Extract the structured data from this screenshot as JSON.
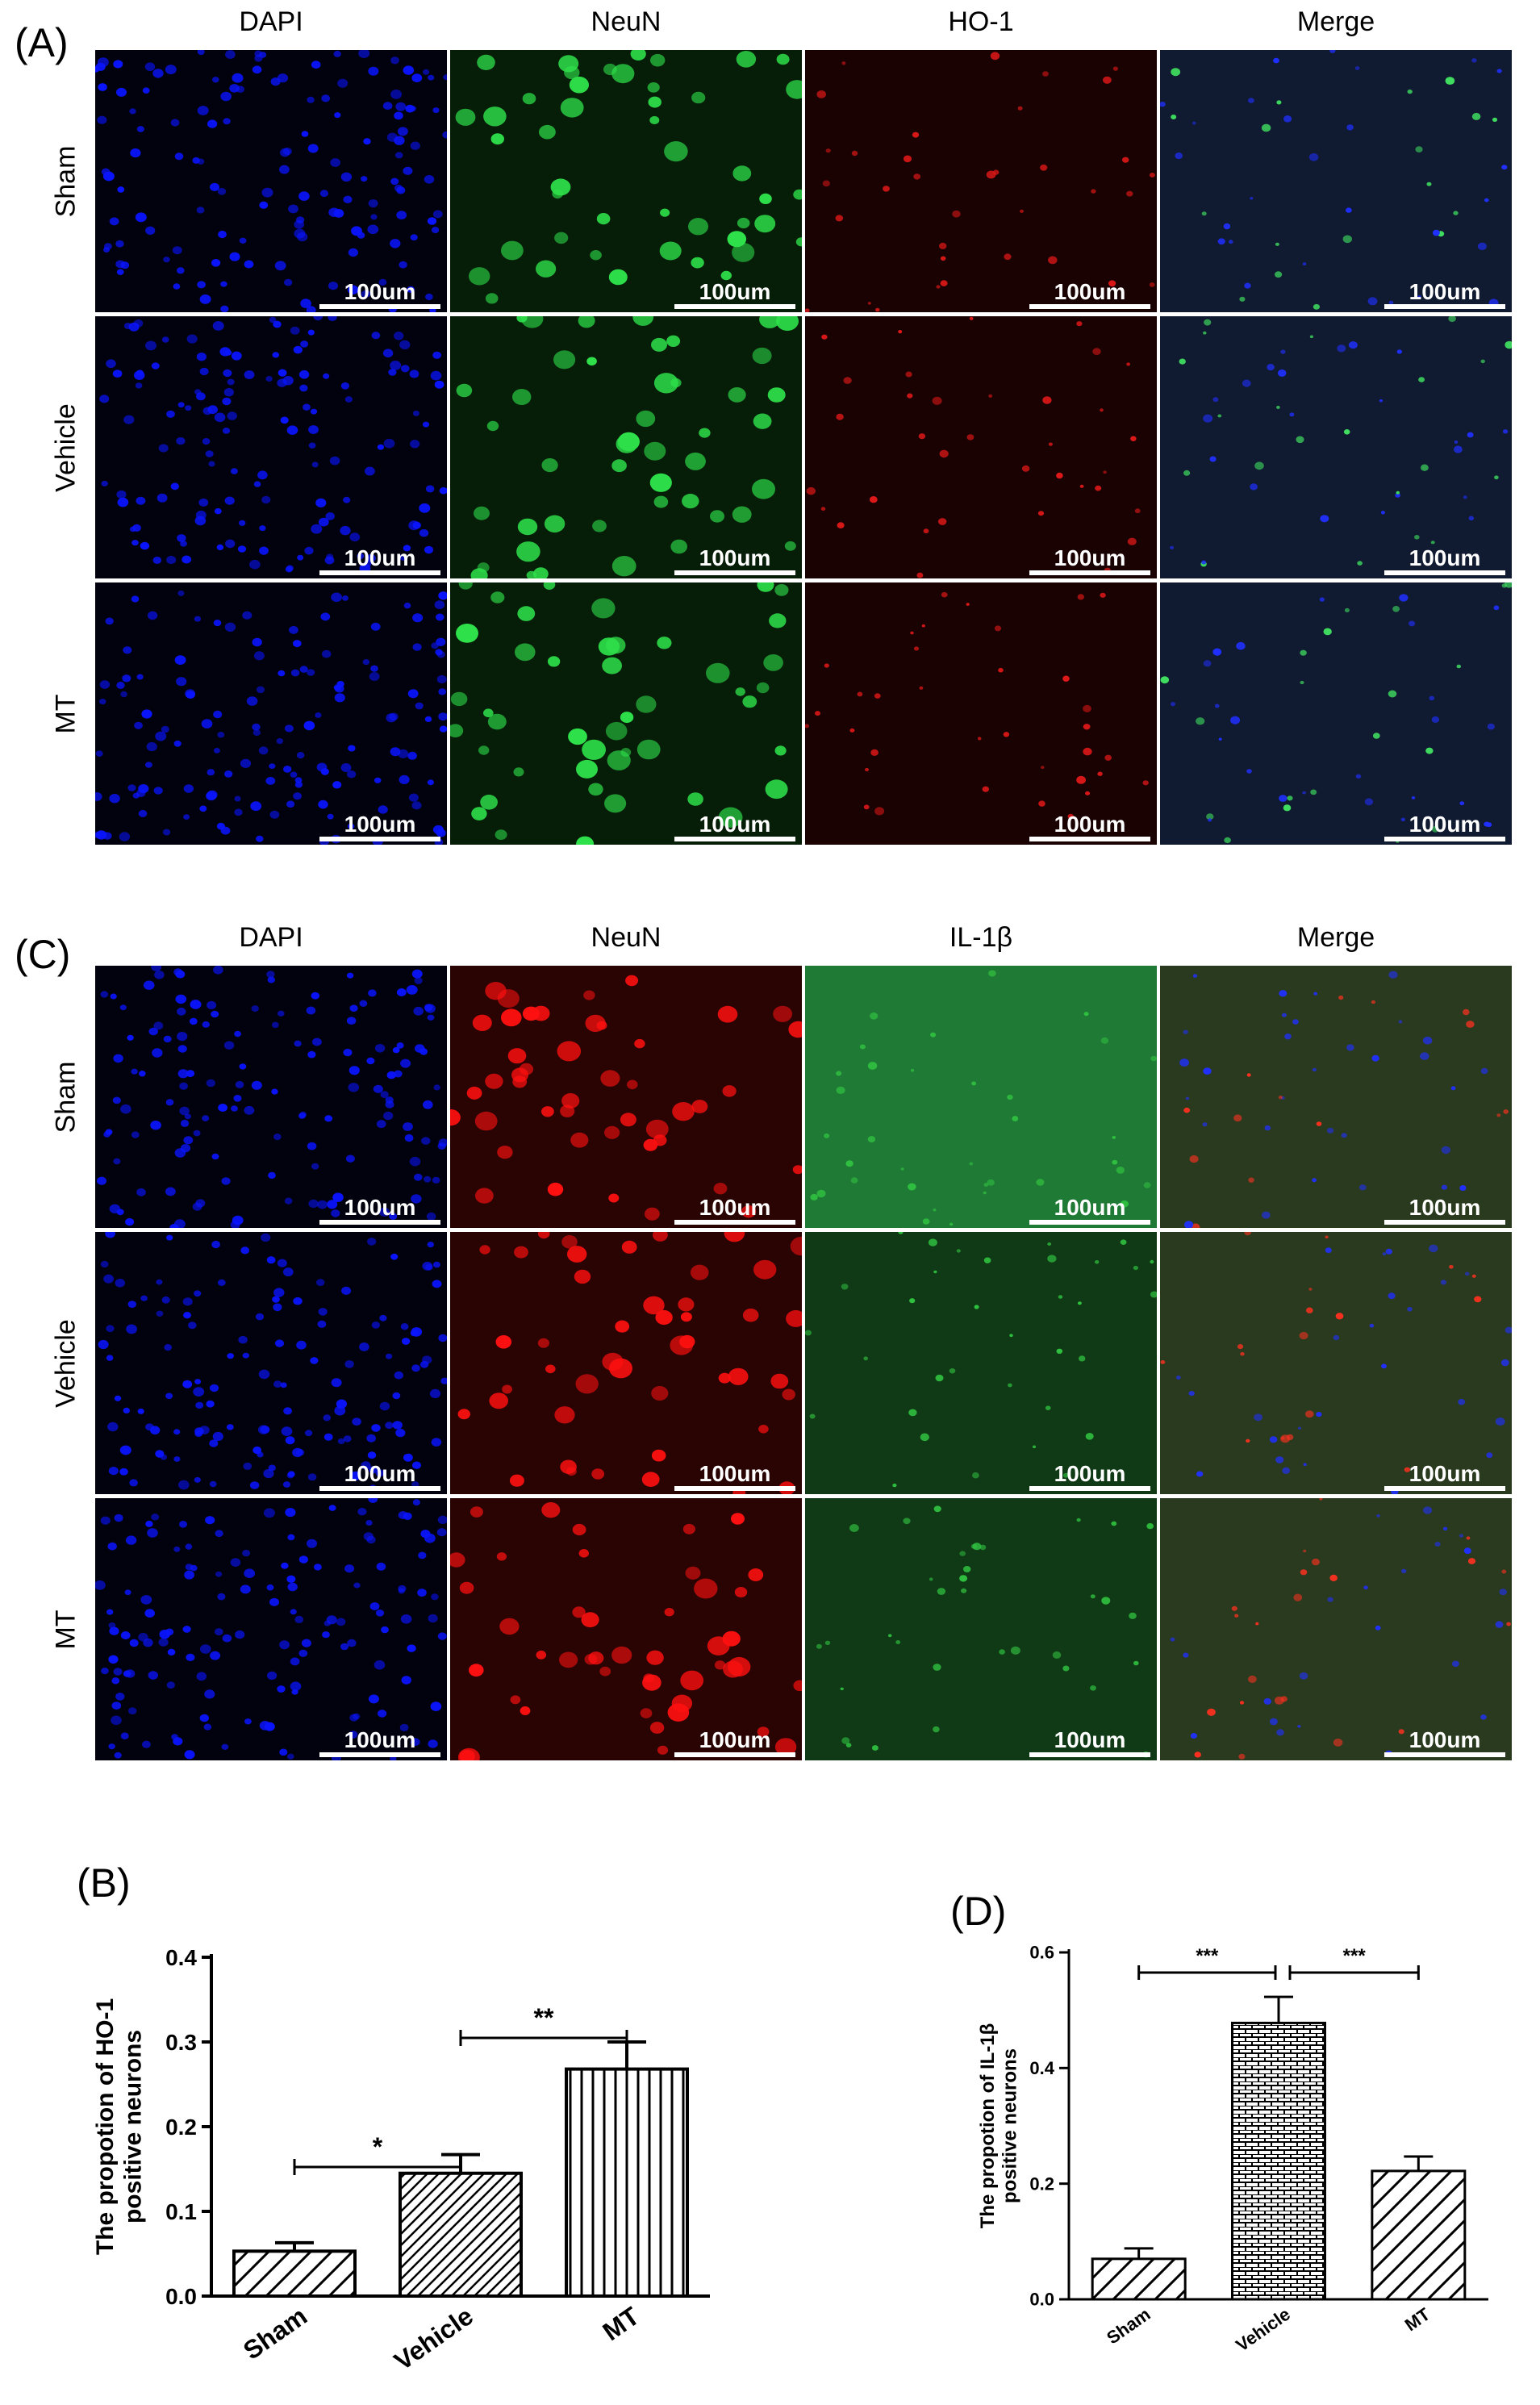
{
  "panels": {
    "A": {
      "letter": "(A)",
      "columns": [
        "DAPI",
        "NeuN",
        "HO-1",
        "Merge"
      ],
      "rows": [
        "Sham",
        "Vehicle",
        "MT"
      ],
      "channel_colors": {
        "DAPI": "#0a14ff",
        "NeuN": "#2ee04a",
        "HO-1": "#e01818",
        "Merge": "#6a8a90"
      },
      "scale_bar": "100um"
    },
    "C": {
      "letter": "(C)",
      "columns": [
        "DAPI",
        "NeuN",
        "IL-1β",
        "Merge"
      ],
      "rows": [
        "Sham",
        "Vehicle",
        "MT"
      ],
      "channel_colors": {
        "DAPI": "#0a14ff",
        "NeuN": "#ff1010",
        "IL-1β": "#30c040",
        "Merge": "#8a6a60"
      },
      "scale_bar": "100um"
    }
  },
  "chart_data": [
    {
      "panel": "(B)",
      "type": "bar",
      "categories": [
        "Sham",
        "Vehicle",
        "MT"
      ],
      "values": [
        0.053,
        0.145,
        0.268
      ],
      "errors": [
        0.01,
        0.022,
        0.032
      ],
      "patterns": [
        "diagonal",
        "diagonal-dense",
        "vertical"
      ],
      "title": "",
      "xlabel": "",
      "ylabel": "The propotion of HO-1 positive neurons",
      "ylabel_lines": [
        "The propotion of HO-1",
        "positive neurons"
      ],
      "ylim": [
        0,
        0.4
      ],
      "yticks": [
        "0.0",
        "0.1",
        "0.2",
        "0.3",
        "0.4"
      ],
      "significance": [
        {
          "from": "Sham",
          "to": "Vehicle",
          "label": "*"
        },
        {
          "from": "Vehicle",
          "to": "MT",
          "label": "**"
        }
      ],
      "grid": false
    },
    {
      "panel": "(D)",
      "type": "bar",
      "categories": [
        "Sham",
        "Vehicle",
        "MT"
      ],
      "values": [
        0.07,
        0.478,
        0.222
      ],
      "errors": [
        0.018,
        0.045,
        0.025
      ],
      "patterns": [
        "diagonal",
        "brick",
        "diagonal"
      ],
      "title": "",
      "xlabel": "",
      "ylabel": "The propotion of IL-1β positive neurons",
      "ylabel_lines": [
        "The propotion of IL-1β",
        "positive neurons"
      ],
      "ylim": [
        0,
        0.6
      ],
      "yticks": [
        "0.0",
        "0.2",
        "0.4",
        "0.6"
      ],
      "significance": [
        {
          "from": "Sham",
          "to": "Vehicle",
          "label": "***"
        },
        {
          "from": "Vehicle",
          "to": "MT",
          "label": "***"
        }
      ],
      "grid": false
    }
  ]
}
